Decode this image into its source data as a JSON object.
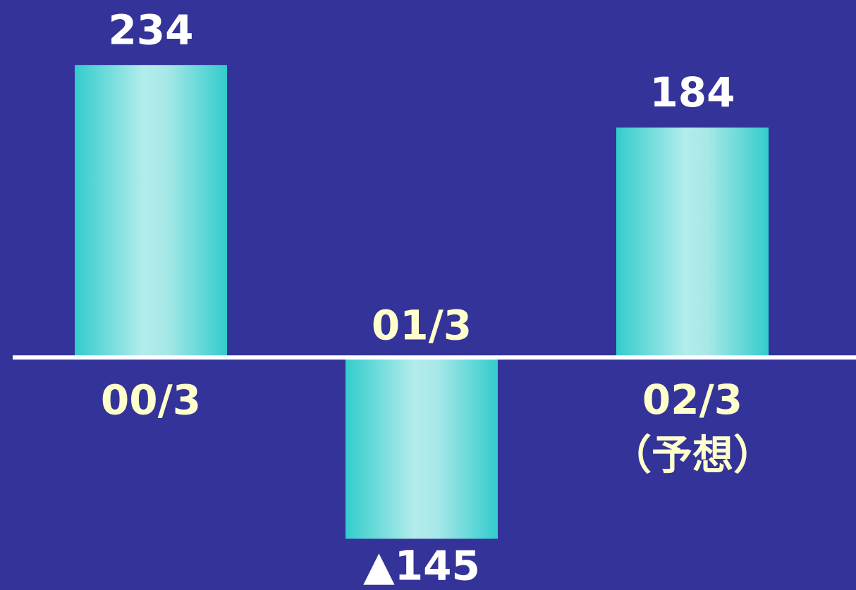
{
  "chart_data": {
    "type": "bar",
    "categories": [
      "00/3",
      "01/3",
      "02/3\n（予想）"
    ],
    "values": [
      234,
      -145,
      184
    ],
    "value_labels": [
      "234",
      "▲145",
      "184"
    ],
    "color": "#33cccc",
    "ylim": [
      -186,
      286
    ]
  }
}
